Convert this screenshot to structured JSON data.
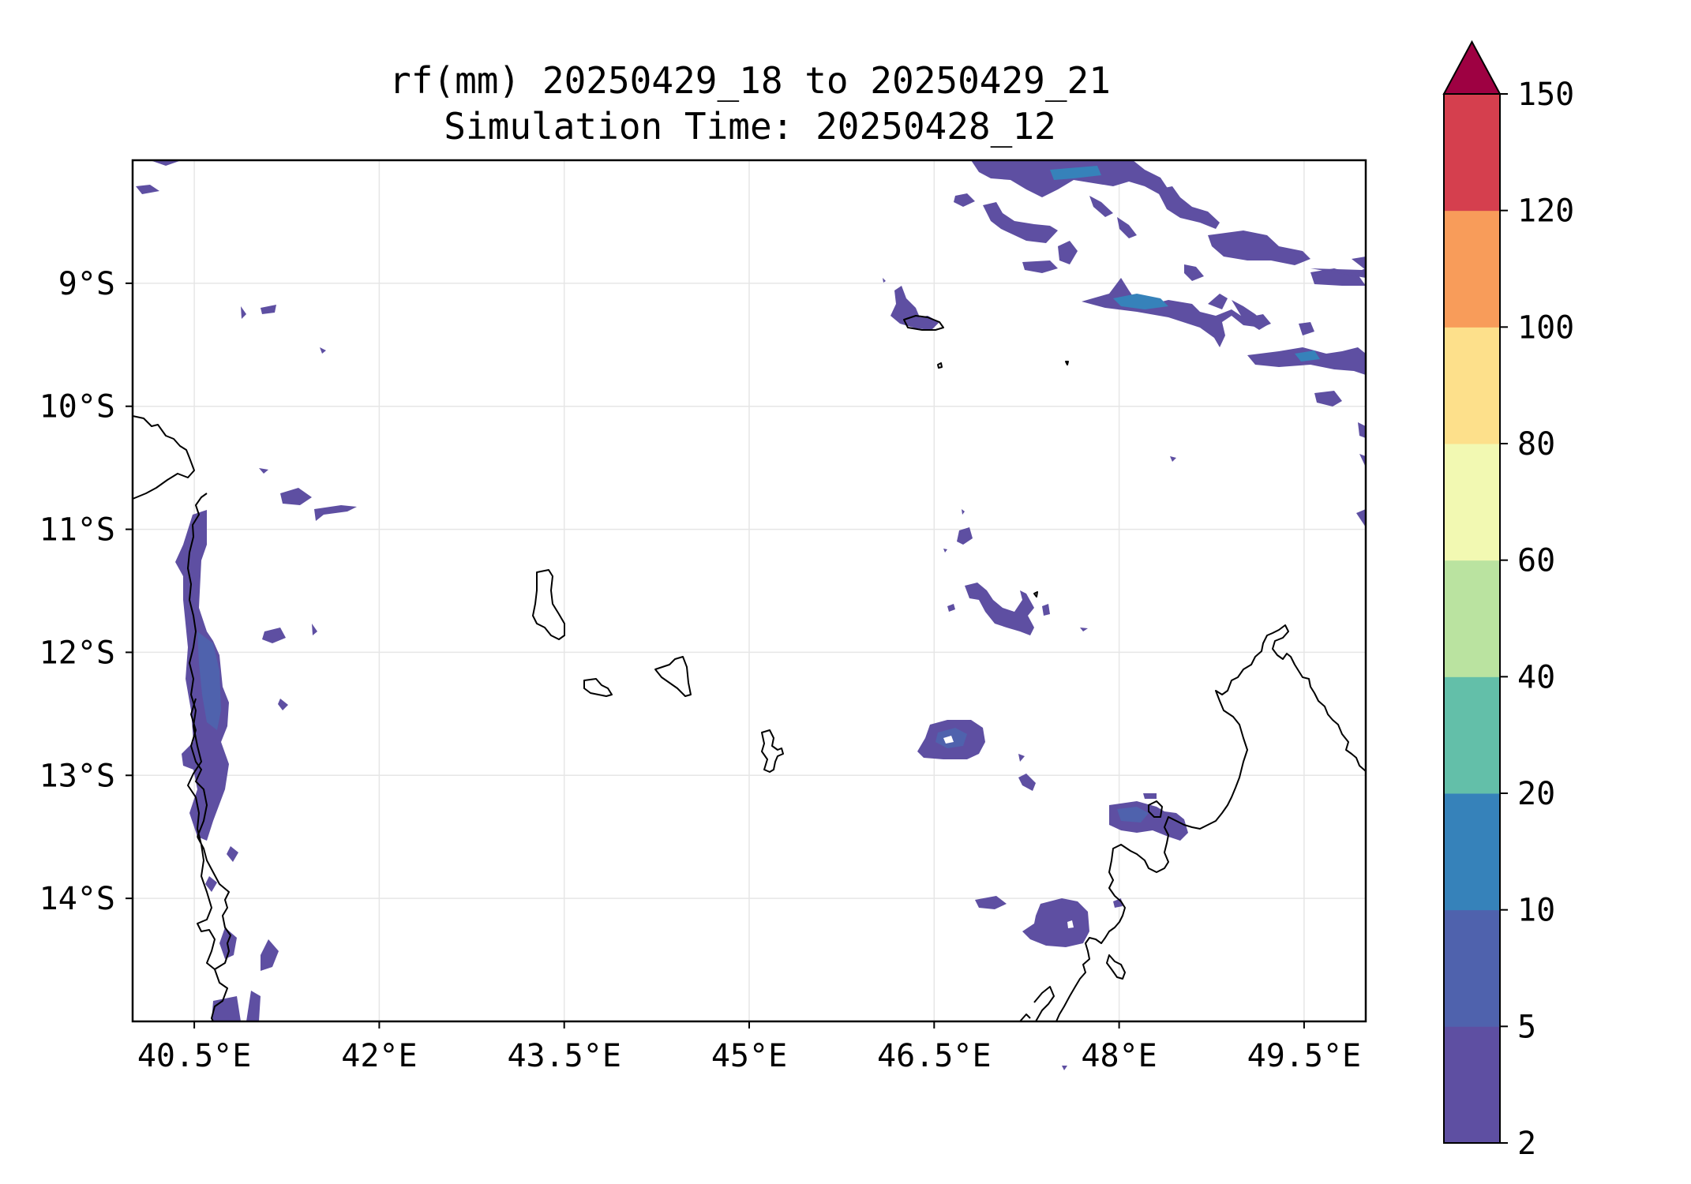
{
  "title_line1": "rf(mm) 20250429_18 to 20250429_21",
  "title_line2": "Simulation Time: 20250428_12",
  "map": {
    "lon_range": [
      40.0,
      50.0
    ],
    "lat_range": [
      -15.0,
      -8.0
    ],
    "lon_ticks": [
      {
        "value": 40.5,
        "label": "40.5°E"
      },
      {
        "value": 42.0,
        "label": "42°E"
      },
      {
        "value": 43.5,
        "label": "43.5°E"
      },
      {
        "value": 45.0,
        "label": "45°E"
      },
      {
        "value": 46.5,
        "label": "46.5°E"
      },
      {
        "value": 48.0,
        "label": "48°E"
      },
      {
        "value": 49.5,
        "label": "49.5°E"
      }
    ],
    "lat_ticks": [
      {
        "value": -9,
        "label": "9°S"
      },
      {
        "value": -10,
        "label": "10°S"
      },
      {
        "value": -11,
        "label": "11°S"
      },
      {
        "value": -12,
        "label": "12°S"
      },
      {
        "value": -13,
        "label": "13°S"
      },
      {
        "value": -14,
        "label": "14°S"
      }
    ],
    "gridlines": true
  },
  "colorbar": {
    "levels": [
      "2",
      "5",
      "10",
      "20",
      "40",
      "60",
      "80",
      "100",
      "120",
      "150"
    ],
    "colors": [
      "#5e4fa2",
      "#4f62ad",
      "#3682ba",
      "#63bfa9",
      "#bae3a0",
      "#f2f9b2",
      "#fde08b",
      "#f89c5a",
      "#d53f4e"
    ],
    "extend_color": "#9e0142",
    "extend": "max"
  }
}
